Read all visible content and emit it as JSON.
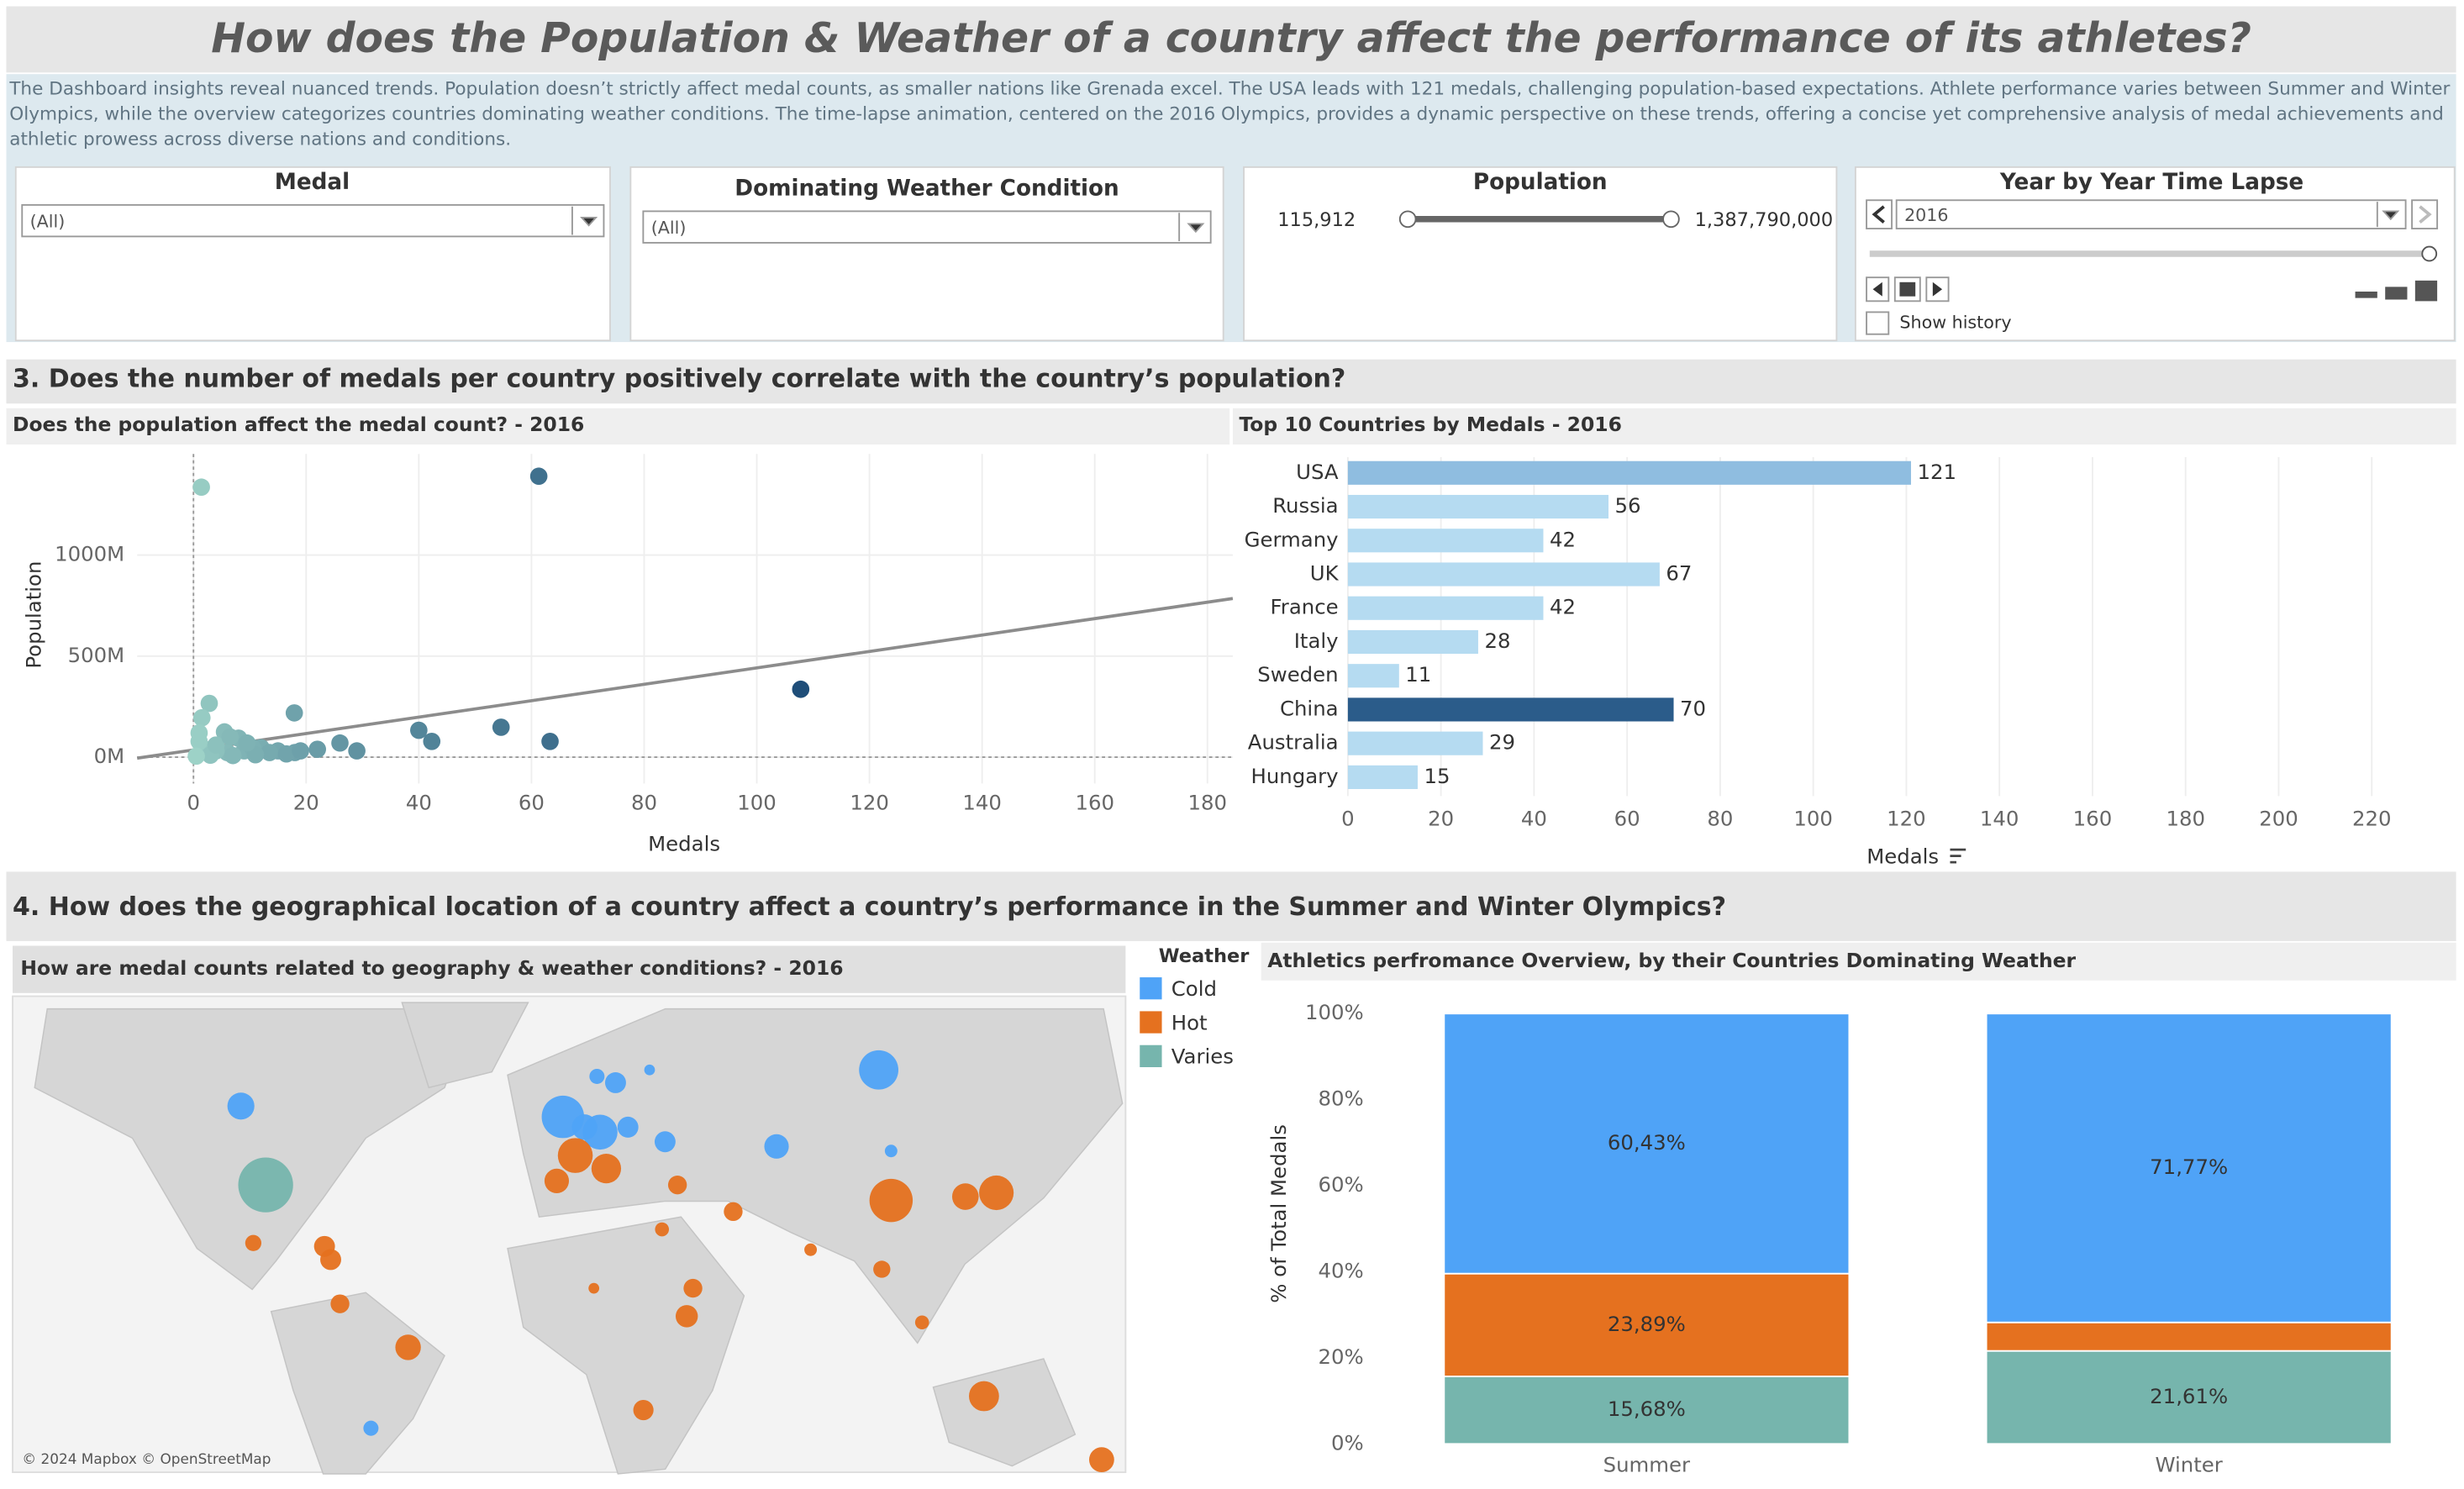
{
  "header": {
    "title": "How does the Population & Weather of a country affect the performance of its athletes?",
    "description": "The Dashboard insights reveal nuanced trends. Population doesn’t strictly affect medal counts, as smaller nations like Grenada excel. The USA leads with 121 medals, challenging population-based expectations. Athlete performance varies between Summer and Winter Olympics, while the overview categorizes countries dominating weather conditions. The time-lapse animation, centered on the 2016 Olympics, provides a dynamic perspective on these trends, offering a concise yet comprehensive analysis of medal achievements and athletic prowess across diverse nations and conditions."
  },
  "filters": {
    "medal": {
      "label": "Medal",
      "value": "(All)"
    },
    "weather": {
      "label": "Dominating Weather Condition",
      "value": "(All)"
    },
    "population": {
      "label": "Population",
      "min": "115,912",
      "max": "1,387,790,000"
    },
    "time_lapse": {
      "label": "Year by Year Time Lapse",
      "value": "2016",
      "history": "Show history"
    }
  },
  "sections": [
    "3. Does the number of medals per country positively correlate with the country’s population?",
    "4. How does the geographical location of a country affect a country’s performance in the Summer and Winter Olympics?"
  ],
  "map_credit": "© 2024 Mapbox © OpenStreetMap",
  "chart_data": [
    {
      "type": "scatter",
      "title": "Does the population affect the medal count? - 2016",
      "x_label": "Medals",
      "y_label": "Population",
      "x": [
        1.4,
        61.3,
        107.8,
        17.9,
        2.8,
        54.6,
        40,
        42.3,
        63.3,
        26,
        29,
        22,
        18,
        15,
        12,
        9,
        6,
        4,
        2,
        1,
        1.5,
        5.5,
        8,
        10.5,
        13.5,
        16.5,
        19,
        3,
        7,
        11,
        0.5,
        1,
        4,
        6.5,
        9.5
      ],
      "y": [
        1336,
        1390,
        336,
        219,
        266,
        148,
        133,
        78,
        78,
        70,
        31,
        39,
        23,
        31,
        47,
        31,
        23,
        31,
        39,
        78,
        195,
        125,
        94,
        47,
        23,
        16,
        31,
        10,
        8,
        12,
        5,
        120,
        60,
        100,
        70
      ],
      "color_range": [
        "#a6dccd",
        "#1f4e79"
      ],
      "trend_line": {
        "x": [
          -10,
          184.5
        ],
        "y": [
          -5,
          785
        ]
      },
      "xlim": [
        -10,
        184.5
      ],
      "ylim": [
        -130,
        1500
      ],
      "xticks": [
        0,
        20,
        40,
        60,
        80,
        100,
        120,
        140,
        160,
        180
      ],
      "yticks": [
        {
          "value": 0,
          "label": "0M"
        },
        {
          "value": 500,
          "label": "500M"
        },
        {
          "value": 1000,
          "label": "1000M"
        }
      ],
      "grid": true
    },
    {
      "type": "bar",
      "orientation": "horizontal",
      "title": "Top 10 Countries by Medals - 2016",
      "x_label": "Medals",
      "categories": [
        "USA",
        "Russia",
        "Germany",
        "UK",
        "France",
        "Italy",
        "Sweden",
        "China",
        "Australia",
        "Hungary"
      ],
      "values": [
        121,
        56,
        42,
        67,
        42,
        28,
        11,
        70,
        29,
        15
      ],
      "colors": [
        "#8fbde0",
        "#b5dbf1",
        "#b5dbf1",
        "#b5dbf1",
        "#b5dbf1",
        "#b5dbf1",
        "#b5dbf1",
        "#2b5c8a",
        "#b5dbf1",
        "#b5dbf1"
      ],
      "xlim": [
        0,
        230
      ],
      "xticks": [
        0,
        20,
        40,
        60,
        80,
        100,
        120,
        140,
        160,
        180,
        200,
        220
      ],
      "grid": true
    },
    {
      "type": "map",
      "title": "How are medal counts related to geography & weather conditions? - 2016",
      "legend_title": "Weather",
      "series": [
        {
          "name": "Cold",
          "color": "#4fa3f7",
          "lon": [
            -106,
            100,
            -2,
            10,
            5,
            15,
            9,
            26,
            19,
            31,
            67,
            104,
            -64
          ],
          "lat": [
            56,
            62,
            54,
            51,
            52,
            60,
            61,
            62,
            52,
            49,
            48,
            47,
            -34
          ],
          "values": [
            22,
            56,
            67,
            42,
            19,
            11,
            4,
            1,
            11,
            11,
            17,
            2,
            4
          ]
        },
        {
          "name": "Hot",
          "color": "#e5711f",
          "lon": [
            104,
            138,
            134,
            -52,
            -102,
            -79,
            -77,
            -74,
            2,
            12,
            -4,
            35,
            53,
            30,
            78,
            38,
            24,
            40,
            8,
            101,
            114,
            128,
            172
          ],
          "lat": [
            35,
            37,
            -25,
            -10,
            23,
            22,
            18,
            4,
            46,
            43,
            40,
            39,
            32,
            27,
            21,
            0,
            -29,
            9,
            9,
            15,
            -2,
            36,
            -42
          ],
          "values": [
            70,
            41,
            29,
            19,
            5,
            11,
            11,
            8,
            42,
            28,
            17,
            8,
            8,
            3,
            2,
            13,
            10,
            8,
            1,
            6,
            3,
            21,
            18
          ]
        },
        {
          "name": "Varies",
          "color": "#76b5ad",
          "lon": [
            -98
          ],
          "lat": [
            39
          ],
          "values": [
            121
          ]
        }
      ]
    },
    {
      "type": "stacked_bar",
      "title": "Athletics perfromance Overview, by their Countries Dominating Weather",
      "y_label": "% of Total Medals",
      "categories": [
        "Summer",
        "Winter"
      ],
      "series": [
        {
          "name": "Varies",
          "color": "#76b5ad",
          "values": [
            15.68,
            21.61
          ],
          "value_labels": [
            "15,68%",
            "21,61%"
          ]
        },
        {
          "name": "Hot",
          "color": "#e5711f",
          "values": [
            23.89,
            6.62
          ],
          "value_labels": [
            "23,89%",
            null
          ]
        },
        {
          "name": "Cold",
          "color": "#4fa3f7",
          "values": [
            60.43,
            71.77
          ],
          "value_labels": [
            "60,43%",
            "71,77%"
          ]
        }
      ],
      "ylim": [
        0,
        100
      ],
      "yticks": [
        {
          "value": 0,
          "label": "0%"
        },
        {
          "value": 20,
          "label": "20%"
        },
        {
          "value": 40,
          "label": "40%"
        },
        {
          "value": 60,
          "label": "60%"
        },
        {
          "value": 80,
          "label": "80%"
        },
        {
          "value": 100,
          "label": "100%"
        }
      ]
    }
  ]
}
